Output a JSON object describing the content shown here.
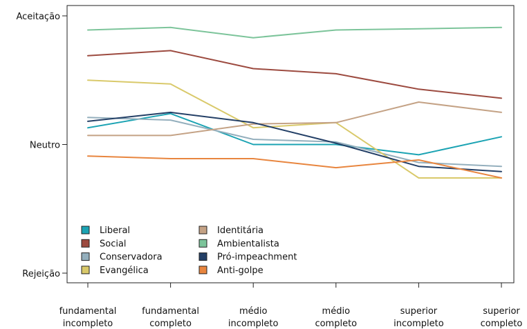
{
  "chart_data": {
    "type": "line",
    "title": "",
    "xlabel": "",
    "ylabel": "",
    "categories": [
      [
        "fundamental",
        "incompleto"
      ],
      [
        "fundamental",
        "completo"
      ],
      [
        "médio",
        "incompleto"
      ],
      [
        "médio",
        "completo"
      ],
      [
        "superior",
        "incompleto"
      ],
      [
        "superior",
        "completo"
      ]
    ],
    "yticks": [
      {
        "value": -1,
        "label": "Rejeição"
      },
      {
        "value": 0,
        "label": "Neutro"
      },
      {
        "value": 1,
        "label": "Aceitação"
      }
    ],
    "ylim": [
      -1,
      1
    ],
    "grid": false,
    "legend_position": "bottom-left",
    "series": [
      {
        "name": "Liberal",
        "color": "#1ba3b3",
        "values": [
          0.13,
          0.24,
          0.0,
          0.0,
          -0.08,
          0.06
        ]
      },
      {
        "name": "Social",
        "color": "#9c4a3f",
        "values": [
          0.69,
          0.73,
          0.59,
          0.55,
          0.43,
          0.36
        ]
      },
      {
        "name": "Conservadora",
        "color": "#94afbd",
        "values": [
          0.21,
          0.19,
          0.04,
          0.02,
          -0.14,
          -0.17
        ]
      },
      {
        "name": "Evangélica",
        "color": "#d9c96a",
        "values": [
          0.5,
          0.47,
          0.13,
          0.17,
          -0.26,
          -0.26
        ]
      },
      {
        "name": "Identitária",
        "color": "#c4a285",
        "values": [
          0.07,
          0.07,
          0.16,
          0.17,
          0.33,
          0.25
        ]
      },
      {
        "name": "Ambientalista",
        "color": "#7cc49a",
        "values": [
          0.89,
          0.91,
          0.83,
          0.89,
          0.9,
          0.91
        ]
      },
      {
        "name": "Pró-impeachment",
        "color": "#233f66",
        "values": [
          0.18,
          0.25,
          0.17,
          0.01,
          -0.17,
          -0.21
        ]
      },
      {
        "name": "Anti-golpe",
        "color": "#e8853e",
        "values": [
          -0.09,
          -0.11,
          -0.11,
          -0.18,
          -0.12,
          -0.26
        ]
      }
    ]
  }
}
